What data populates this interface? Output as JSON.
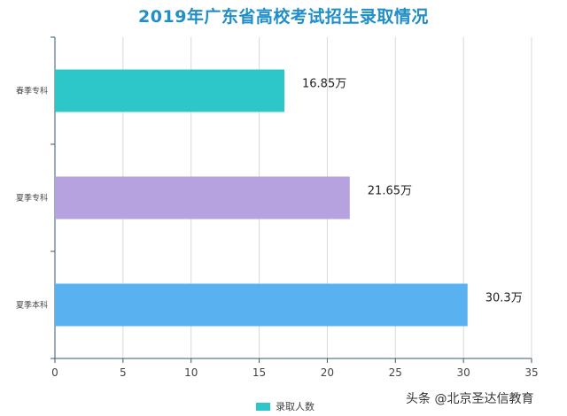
{
  "chart_data": {
    "type": "bar",
    "orientation": "horizontal",
    "title": "2019年广东省高校考试招生录取情况",
    "categories": [
      "春季专科",
      "夏季专科",
      "夏季本科"
    ],
    "series": [
      {
        "name": "录取人数",
        "values": [
          16.85,
          21.65,
          30.3
        ],
        "data_labels": [
          "16.85万",
          "21.65万",
          "30.3万"
        ],
        "colors": [
          "#2ec7c9",
          "#b6a2de",
          "#5ab1ef"
        ]
      }
    ],
    "xlim": [
      0,
      35
    ],
    "x_ticks": [
      0,
      5,
      10,
      15,
      20,
      25,
      30,
      35
    ],
    "grid": true,
    "legend": "bottom"
  },
  "legend": {
    "label": "录取人数",
    "color": "#2ec7c9"
  },
  "watermark": "头条 @北京圣达信教育",
  "colors": {
    "title": "#1f8ec9",
    "axis": "#3a5a6a",
    "grid": "#d9d9d9"
  }
}
